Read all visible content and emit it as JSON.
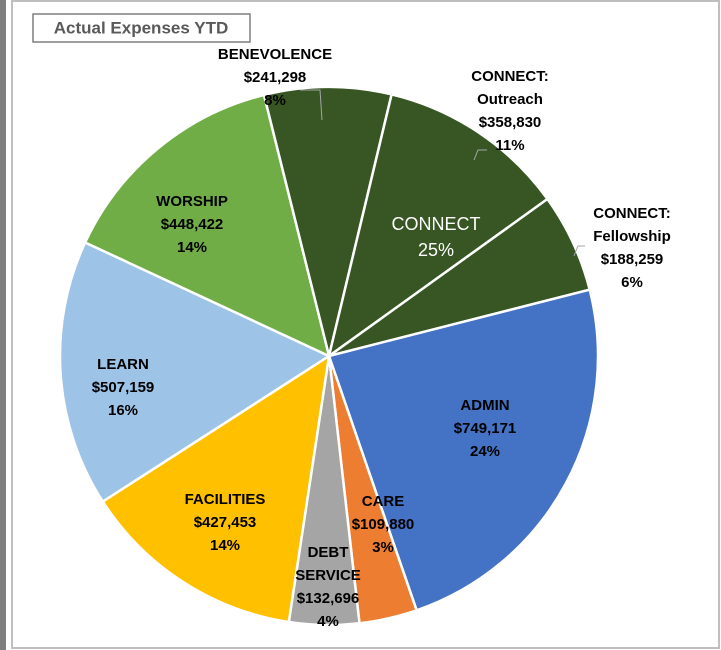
{
  "chart_data": {
    "type": "pie",
    "title": "Actual Expenses YTD",
    "categories": [
      [
        "BENEVOLENCE"
      ],
      [
        "CONNECT:",
        "Outreach"
      ],
      [
        "CONNECT:",
        "Fellowship"
      ],
      [
        "ADMIN"
      ],
      [
        "CARE"
      ],
      [
        "DEBT",
        "SERVICE"
      ],
      [
        "FACILITIES"
      ],
      [
        "LEARN"
      ],
      [
        "WORSHIP"
      ]
    ],
    "values": [
      241298,
      358830,
      188259,
      749171,
      109880,
      132696,
      427453,
      507159,
      448422
    ],
    "value_labels": [
      "$241,298",
      "$358,830",
      "$188,259",
      "$749,171",
      "$109,880",
      "$132,696",
      "$427,453",
      "$507,159",
      "$448,422"
    ],
    "percent_labels": [
      "8%",
      "11%",
      "6%",
      "24%",
      "3%",
      "4%",
      "14%",
      "16%",
      "14%"
    ],
    "colors": [
      "#375623",
      "#375623",
      "#375623",
      "#4472c4",
      "#ed7d31",
      "#a5a5a5",
      "#ffc000",
      "#9dc3e6",
      "#70ad47"
    ],
    "annotation": {
      "text": "CONNECT",
      "value_label": "25%"
    }
  }
}
